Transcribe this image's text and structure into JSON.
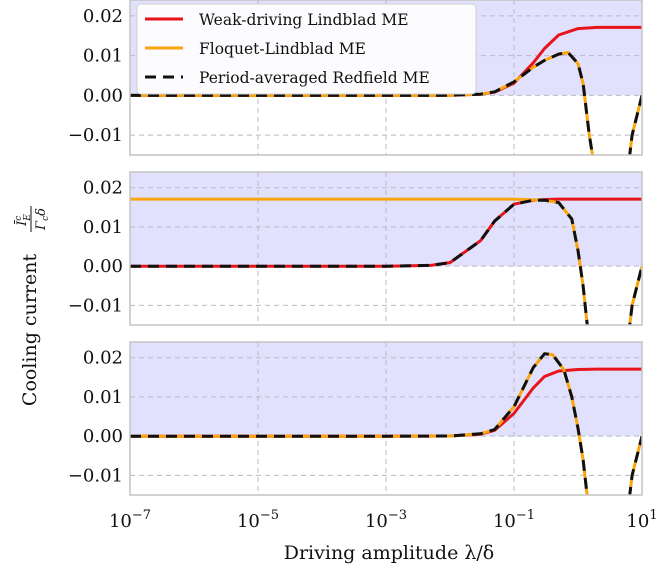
{
  "chart_data": {
    "type": "line",
    "xscale": "log",
    "xlim": [
      1e-07,
      10
    ],
    "ylim": [
      -0.015,
      0.024
    ],
    "xlabel": "Driving amplitude λ/δ",
    "ylabel": "Cooling current",
    "ylabel_fraction": {
      "numerator": "Ī^c_E",
      "denominator": "Γ_c δ"
    },
    "x_tick_labels": [
      {
        "value": 1e-07,
        "base": "10",
        "exp": "−7"
      },
      {
        "value": 1e-05,
        "base": "10",
        "exp": "−5"
      },
      {
        "value": 0.001,
        "base": "10",
        "exp": "−3"
      },
      {
        "value": 0.1,
        "base": "10",
        "exp": "−1"
      },
      {
        "value": 10,
        "base": "10",
        "exp": "1"
      }
    ],
    "y_ticks": [
      0.02,
      0.01,
      0.0,
      -0.01
    ],
    "y_tick_labels": [
      "0.02",
      "0.01",
      "0.00",
      "−0.01"
    ],
    "grid": true,
    "shaded_region": "y > 0",
    "legend": {
      "placement": "top-left",
      "panel": 0,
      "entries": [
        {
          "label": "Weak-driving Lindblad ME",
          "color": "#e8141c",
          "style": "solid"
        },
        {
          "label": "Floquet-Lindblad ME",
          "color": "#f9a50f",
          "style": "solid"
        },
        {
          "label": "Period-averaged Redfield ME",
          "color": "#111111",
          "style": "dashed"
        }
      ]
    },
    "panels": [
      {
        "series": [
          {
            "name": "Weak-driving Lindblad ME",
            "color": "#e8141c",
            "x": [
              1e-07,
              0.001,
              0.01,
              0.03,
              0.05,
              0.1,
              0.2,
              0.3,
              0.5,
              1,
              2,
              10
            ],
            "y": [
              0,
              0,
              3e-05,
              0.0003,
              0.0008,
              0.0031,
              0.0082,
              0.0118,
              0.0152,
              0.0168,
              0.0171,
              0.0171
            ]
          },
          {
            "name": "Floquet-Lindblad ME",
            "color": "#f9a50f",
            "x": [
              1e-07,
              0.001,
              0.01,
              0.03,
              0.05,
              0.1,
              0.2,
              0.3,
              0.5,
              0.7,
              1,
              1.2,
              1.5,
              3,
              5,
              7,
              10
            ],
            "y": [
              0,
              0,
              3e-05,
              0.0003,
              0.0009,
              0.0034,
              0.0071,
              0.0088,
              0.0104,
              0.0108,
              0.008,
              0.003,
              -0.01,
              -0.04,
              -0.03,
              -0.01,
              0
            ]
          },
          {
            "name": "Period-averaged Redfield ME",
            "color": "#111111",
            "x": [
              1e-07,
              0.001,
              0.01,
              0.03,
              0.05,
              0.1,
              0.2,
              0.3,
              0.5,
              0.7,
              1,
              1.2,
              1.5,
              3,
              5,
              7,
              10
            ],
            "y": [
              0,
              0,
              3e-05,
              0.0003,
              0.0009,
              0.0034,
              0.0071,
              0.0088,
              0.0104,
              0.0108,
              0.008,
              0.003,
              -0.01,
              -0.04,
              -0.03,
              -0.01,
              0
            ]
          }
        ]
      },
      {
        "series": [
          {
            "name": "Weak-driving Lindblad ME",
            "color": "#e8141c",
            "x": [
              1e-07,
              0.001,
              0.005,
              0.01,
              0.03,
              0.05,
              0.1,
              0.2,
              0.3,
              0.5,
              1,
              10
            ],
            "y": [
              0,
              0,
              0.0002,
              0.0009,
              0.0065,
              0.0115,
              0.0158,
              0.0168,
              0.017,
              0.0171,
              0.0171,
              0.0171
            ]
          },
          {
            "name": "Floquet-Lindblad ME",
            "color": "#f9a50f",
            "x": [
              1e-07,
              0.1,
              0.3,
              0.5,
              0.8,
              1,
              1.2,
              1.5,
              3,
              5,
              7,
              10
            ],
            "y": [
              0.0171,
              0.0171,
              0.0168,
              0.0162,
              0.012,
              0.004,
              -0.005,
              -0.02,
              -0.04,
              -0.03,
              -0.01,
              0
            ]
          },
          {
            "name": "Period-averaged Redfield ME",
            "color": "#111111",
            "x": [
              1e-07,
              0.001,
              0.005,
              0.01,
              0.03,
              0.05,
              0.1,
              0.2,
              0.3,
              0.5,
              0.8,
              1,
              1.2,
              1.5,
              3,
              5,
              7,
              10
            ],
            "y": [
              0,
              0,
              0.0002,
              0.0009,
              0.0065,
              0.0115,
              0.0158,
              0.0168,
              0.0168,
              0.0162,
              0.012,
              0.004,
              -0.005,
              -0.02,
              -0.04,
              -0.03,
              -0.01,
              0
            ]
          }
        ]
      },
      {
        "series": [
          {
            "name": "Weak-driving Lindblad ME",
            "color": "#e8141c",
            "x": [
              1e-07,
              0.001,
              0.01,
              0.03,
              0.05,
              0.1,
              0.2,
              0.3,
              0.5,
              1,
              2,
              10
            ],
            "y": [
              0,
              0,
              5e-05,
              0.0005,
              0.0015,
              0.0058,
              0.0123,
              0.0152,
              0.0166,
              0.017,
              0.0171,
              0.0171
            ]
          },
          {
            "name": "Floquet-Lindblad ME",
            "color": "#f9a50f",
            "x": [
              1e-07,
              0.001,
              0.01,
              0.03,
              0.05,
              0.1,
              0.2,
              0.3,
              0.4,
              0.6,
              0.8,
              1,
              1.2,
              1.5,
              3,
              5,
              7,
              10
            ],
            "y": [
              0,
              0,
              5e-05,
              0.0006,
              0.0017,
              0.0075,
              0.0175,
              0.021,
              0.0208,
              0.017,
              0.01,
              0.002,
              -0.006,
              -0.02,
              -0.04,
              -0.03,
              -0.01,
              0
            ]
          },
          {
            "name": "Period-averaged Redfield ME",
            "color": "#111111",
            "x": [
              1e-07,
              0.001,
              0.01,
              0.03,
              0.05,
              0.1,
              0.2,
              0.3,
              0.4,
              0.6,
              0.8,
              1,
              1.2,
              1.5,
              3,
              5,
              7,
              10
            ],
            "y": [
              0,
              0,
              5e-05,
              0.0006,
              0.0017,
              0.0075,
              0.0175,
              0.021,
              0.0208,
              0.017,
              0.01,
              0.002,
              -0.006,
              -0.02,
              -0.04,
              -0.03,
              -0.01,
              0
            ]
          }
        ]
      }
    ]
  }
}
